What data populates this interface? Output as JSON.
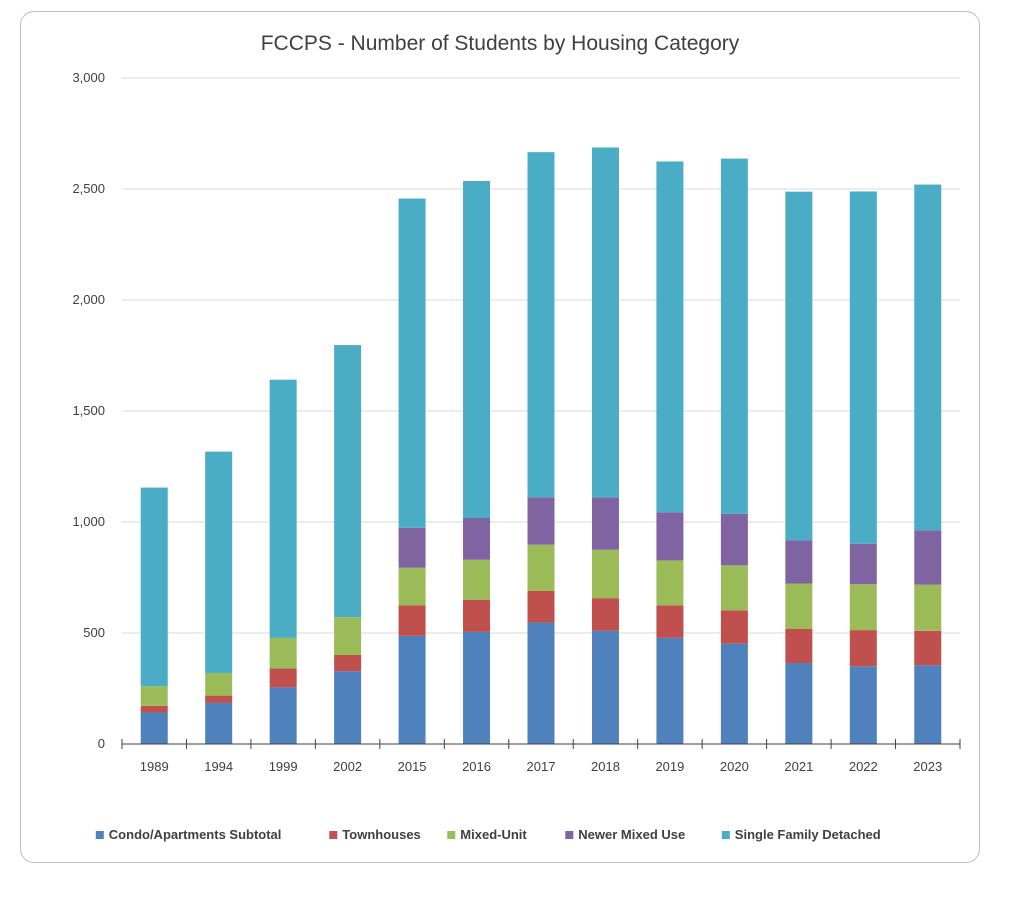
{
  "chart_data": {
    "type": "bar",
    "stacked": true,
    "title": "FCCPS - Number of Students by Housing Category",
    "xlabel": "",
    "ylabel": "",
    "ylim": [
      0,
      3000
    ],
    "yticks": [
      0,
      500,
      1000,
      1500,
      2000,
      2500,
      3000
    ],
    "ytick_labels": [
      "0",
      "500",
      "1,000",
      "1,500",
      "2,000",
      "2,500",
      "3,000"
    ],
    "grid": true,
    "legend_position": "bottom",
    "categories": [
      "1989",
      "1994",
      "1999",
      "2002",
      "2015",
      "2016",
      "2017",
      "2018",
      "2019",
      "2020",
      "2021",
      "2022",
      "2023"
    ],
    "series": [
      {
        "name": "Condo/Apartments Subtotal",
        "color": "#4f81bd",
        "values": [
          142,
          185,
          255,
          328,
          487,
          505,
          547,
          510,
          478,
          452,
          365,
          350,
          355
        ]
      },
      {
        "name": "Townhouses",
        "color": "#c0504d",
        "values": [
          30,
          33,
          85,
          73,
          137,
          145,
          143,
          147,
          147,
          150,
          153,
          163,
          155
        ]
      },
      {
        "name": "Mixed-Unit",
        "color": "#9bbb59",
        "values": [
          88,
          102,
          138,
          170,
          170,
          180,
          208,
          218,
          202,
          203,
          205,
          207,
          208
        ]
      },
      {
        "name": "Newer Mixed Use",
        "color": "#8064a2",
        "values": [
          0,
          0,
          0,
          0,
          180,
          188,
          213,
          235,
          217,
          232,
          195,
          182,
          245
        ]
      },
      {
        "name": "Single Family Detached",
        "color": "#4bacc6",
        "values": [
          895,
          997,
          1163,
          1226,
          1483,
          1518,
          1555,
          1577,
          1580,
          1600,
          1570,
          1587,
          1557
        ]
      }
    ]
  }
}
